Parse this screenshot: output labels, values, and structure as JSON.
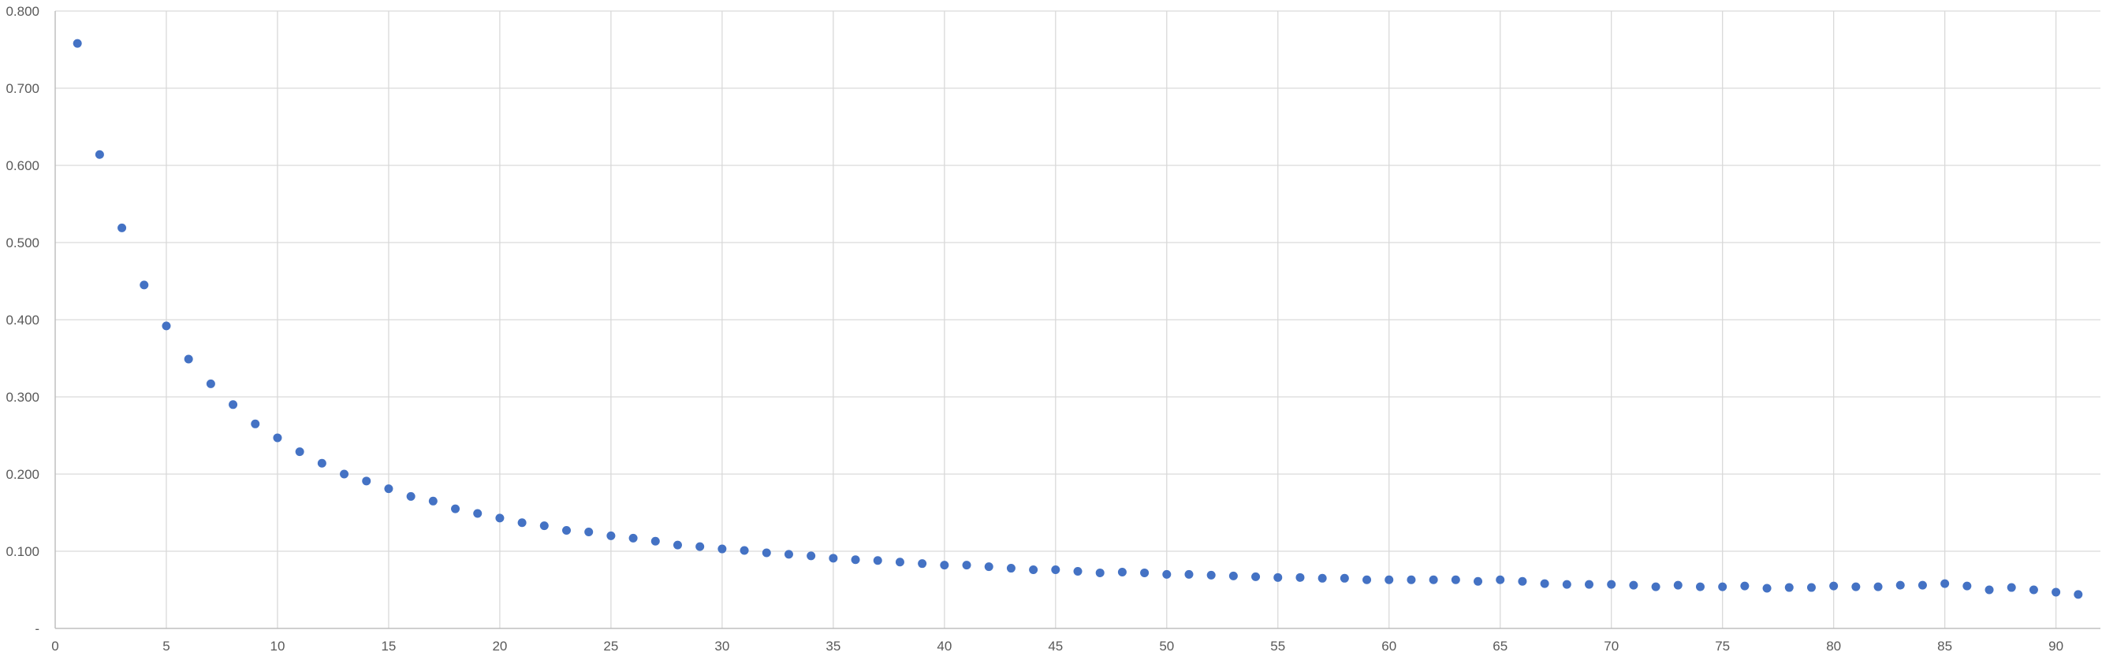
{
  "chart_data": {
    "type": "scatter",
    "title": "",
    "xlabel": "",
    "ylabel": "",
    "xlim": [
      0,
      92
    ],
    "ylim": [
      0,
      0.8
    ],
    "x_ticks": [
      0,
      5,
      10,
      15,
      20,
      25,
      30,
      35,
      40,
      45,
      50,
      55,
      60,
      65,
      70,
      75,
      80,
      85,
      90
    ],
    "x_tick_labels": [
      "0",
      "5",
      "10",
      "15",
      "20",
      "25",
      "30",
      "35",
      "40",
      "45",
      "50",
      "55",
      "60",
      "65",
      "70",
      "75",
      "80",
      "85",
      "90"
    ],
    "y_ticks": [
      0,
      0.1,
      0.2,
      0.3,
      0.4,
      0.5,
      0.6,
      0.7,
      0.8
    ],
    "y_tick_labels": [
      "-",
      "0.100",
      "0.200",
      "0.300",
      "0.400",
      "0.500",
      "0.600",
      "0.700",
      "0.800"
    ],
    "grid": true,
    "marker_color": "#4472C4",
    "series": [
      {
        "x": [
          1,
          2,
          3,
          4,
          5,
          6,
          7,
          8,
          9,
          10,
          11,
          12,
          13,
          14,
          15,
          16,
          17,
          18,
          19,
          20,
          21,
          22,
          23,
          24,
          25,
          26,
          27,
          28,
          29,
          30,
          31,
          32,
          33,
          34,
          35,
          36,
          37,
          38,
          39,
          40,
          41,
          42,
          43,
          44,
          45,
          46,
          47,
          48,
          49,
          50,
          51,
          52,
          53,
          54,
          55,
          56,
          57,
          58,
          59,
          60,
          61,
          62,
          63,
          64,
          65,
          66,
          67,
          68,
          69,
          70,
          71,
          72,
          73,
          74,
          75,
          76,
          77,
          78,
          79,
          80,
          81,
          82,
          83,
          84,
          85,
          86,
          87,
          88,
          89,
          90,
          91
        ],
        "values": [
          0.758,
          0.614,
          0.519,
          0.445,
          0.392,
          0.349,
          0.317,
          0.29,
          0.265,
          0.247,
          0.229,
          0.214,
          0.2,
          0.191,
          0.181,
          0.171,
          0.165,
          0.155,
          0.149,
          0.143,
          0.137,
          0.133,
          0.127,
          0.125,
          0.12,
          0.117,
          0.113,
          0.108,
          0.106,
          0.103,
          0.101,
          0.098,
          0.096,
          0.094,
          0.091,
          0.089,
          0.088,
          0.086,
          0.084,
          0.082,
          0.082,
          0.08,
          0.078,
          0.076,
          0.076,
          0.074,
          0.072,
          0.073,
          0.072,
          0.07,
          0.07,
          0.069,
          0.068,
          0.067,
          0.066,
          0.066,
          0.065,
          0.065,
          0.063,
          0.063,
          0.063,
          0.063,
          0.063,
          0.061,
          0.063,
          0.061,
          0.058,
          0.057,
          0.057,
          0.057,
          0.056,
          0.054,
          0.056,
          0.054,
          0.054,
          0.055,
          0.052,
          0.053,
          0.053,
          0.055,
          0.054,
          0.054,
          0.056,
          0.056,
          0.058,
          0.055,
          0.05,
          0.053,
          0.05,
          0.047,
          0.044
        ]
      }
    ]
  }
}
